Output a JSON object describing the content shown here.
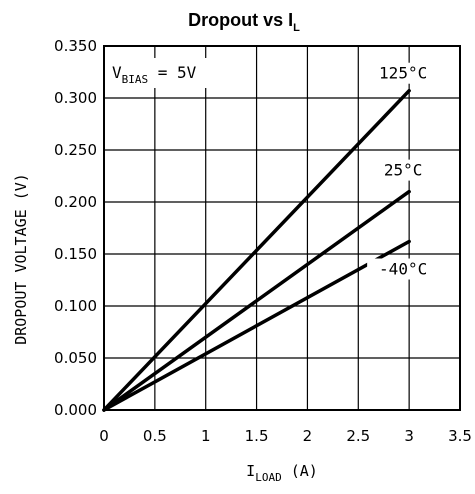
{
  "chart_data": {
    "type": "line",
    "title": {
      "main": "Dropout vs I",
      "sub": "L"
    },
    "xlabel": {
      "main": "I",
      "sub": "LOAD",
      "unit": " (A)"
    },
    "ylabel": "DROPOUT VOLTAGE (V)",
    "xlim": [
      0,
      3.5
    ],
    "ylim": [
      0,
      0.35
    ],
    "x_ticks": [
      "0",
      "0.5",
      "1",
      "1.5",
      "2",
      "2.5",
      "3",
      "3.5"
    ],
    "y_ticks": [
      "0.000",
      "0.050",
      "0.100",
      "0.150",
      "0.200",
      "0.250",
      "0.300",
      "0.350"
    ],
    "grid": true,
    "annotation": {
      "main": "V",
      "sub": "BIAS",
      "rest": " = 5V"
    },
    "series": [
      {
        "name": "125°C",
        "x": [
          0,
          3
        ],
        "y": [
          0,
          0.307
        ]
      },
      {
        "name": "25°C",
        "x": [
          0,
          3
        ],
        "y": [
          0,
          0.21
        ]
      },
      {
        "name": "-40°C",
        "x": [
          0,
          3
        ],
        "y": [
          0,
          0.162
        ]
      }
    ]
  }
}
